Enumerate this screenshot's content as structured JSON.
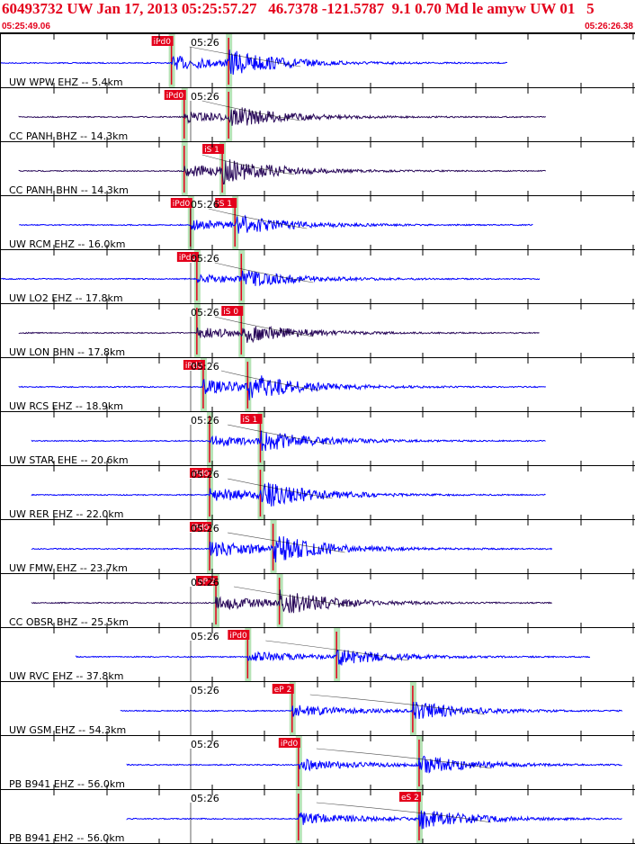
{
  "header": {
    "title": "60493732 UW Jan 17, 2013 05:25:57.27   46.7378 -121.5787  9.1 0.70 Md le amyw UW 01   5",
    "start_time": "05:25:49.06",
    "end_time": "05:26:26.38"
  },
  "colors": {
    "title": "#e4001b",
    "trace_blue": "#0000ff",
    "trace_dark": "#2a0a5a",
    "pick_red": "#e4001b",
    "window_green": "#b6e3b6"
  },
  "time_axis": {
    "minute_label": "05:26"
  },
  "traces": [
    {
      "label": "UW WPW EHZ -- 5.4km",
      "color": "blue",
      "amp": 0.55,
      "start": 0.0,
      "end": 0.8,
      "p": 0.27,
      "s": 0.36,
      "picks": [
        {
          "t": 0.27,
          "text": "iPd0"
        }
      ],
      "show_minute": true
    },
    {
      "label": "CC PANH BHZ -- 14.3km",
      "color": "dark",
      "amp": 0.45,
      "start": 0.03,
      "end": 0.86,
      "p": 0.29,
      "s": 0.36,
      "picks": [
        {
          "t": 0.29,
          "text": "iPd0"
        }
      ],
      "show_minute": true
    },
    {
      "label": "CC PANH BHN -- 14.3km",
      "color": "dark",
      "amp": 0.5,
      "start": 0.03,
      "end": 0.86,
      "p": 0.29,
      "s": 0.35,
      "picks": [
        {
          "t": 0.35,
          "text": "iS 1"
        }
      ],
      "show_minute": false
    },
    {
      "label": "UW RCM EHZ -- 16.0km",
      "color": "blue",
      "amp": 0.4,
      "start": 0.03,
      "end": 0.84,
      "p": 0.3,
      "s": 0.37,
      "picks": [
        {
          "t": 0.3,
          "text": "iPd0"
        },
        {
          "t": 0.37,
          "text": "iS 1"
        }
      ],
      "show_minute": true
    },
    {
      "label": "UW LO2 EHZ -- 17.8km",
      "color": "blue",
      "amp": 0.35,
      "start": 0.0,
      "end": 0.85,
      "p": 0.31,
      "s": 0.38,
      "picks": [
        {
          "t": 0.31,
          "text": "iPd0"
        }
      ],
      "show_minute": true
    },
    {
      "label": "UW LON BHN -- 17.8km",
      "color": "dark",
      "amp": 0.4,
      "start": 0.03,
      "end": 0.85,
      "p": 0.31,
      "s": 0.38,
      "picks": [
        {
          "t": 0.38,
          "text": "iS 0"
        }
      ],
      "show_minute": true
    },
    {
      "label": "UW RCS EHZ -- 18.9km",
      "color": "blue",
      "amp": 0.55,
      "start": 0.03,
      "end": 0.86,
      "p": 0.32,
      "s": 0.39,
      "picks": [
        {
          "t": 0.32,
          "text": "iPd0"
        }
      ],
      "show_minute": true
    },
    {
      "label": "UW STAR EHE -- 20.6km",
      "color": "blue",
      "amp": 0.45,
      "start": 0.05,
      "end": 0.86,
      "p": 0.33,
      "s": 0.41,
      "picks": [
        {
          "t": 0.41,
          "text": "iS 1"
        }
      ],
      "show_minute": true
    },
    {
      "label": "UW RER EHZ -- 22.0km",
      "color": "blue",
      "amp": 0.55,
      "start": 0.05,
      "end": 0.86,
      "p": 0.33,
      "s": 0.41,
      "picks": [
        {
          "t": 0.33,
          "text": "iPd0"
        }
      ],
      "show_minute": true
    },
    {
      "label": "UW FMW EHZ -- 23.7km",
      "color": "blue",
      "amp": 0.6,
      "start": 0.05,
      "end": 0.87,
      "p": 0.33,
      "s": 0.43,
      "picks": [
        {
          "t": 0.33,
          "text": "iPd0"
        }
      ],
      "show_minute": true
    },
    {
      "label": "CC OBSR BHZ -- 25.5km",
      "color": "dark",
      "amp": 0.55,
      "start": 0.05,
      "end": 0.87,
      "p": 0.34,
      "s": 0.44,
      "picks": [
        {
          "t": 0.34,
          "text": "eP 2"
        }
      ],
      "show_minute": true
    },
    {
      "label": "UW RVC EHZ -- 37.8km",
      "color": "blue",
      "amp": 0.4,
      "start": 0.12,
      "end": 0.93,
      "p": 0.39,
      "s": 0.53,
      "picks": [
        {
          "t": 0.39,
          "text": "iPd0"
        }
      ],
      "show_minute": true
    },
    {
      "label": "UW GSM EHZ -- 54.3km",
      "color": "blue",
      "amp": 0.45,
      "start": 0.19,
      "end": 0.98,
      "p": 0.46,
      "s": 0.65,
      "picks": [
        {
          "t": 0.46,
          "text": "eP 2"
        }
      ],
      "show_minute": true
    },
    {
      "label": "PB B941 EHZ -- 56.0km",
      "color": "blue",
      "amp": 0.45,
      "start": 0.2,
      "end": 0.98,
      "p": 0.47,
      "s": 0.66,
      "picks": [
        {
          "t": 0.47,
          "text": "iPd0"
        }
      ],
      "show_minute": true
    },
    {
      "label": "PB B941 EH2 -- 56.0km",
      "color": "blue",
      "amp": 0.5,
      "start": 0.2,
      "end": 0.98,
      "p": 0.47,
      "s": 0.66,
      "picks": [
        {
          "t": 0.66,
          "text": "eS 2"
        }
      ],
      "show_minute": true
    }
  ]
}
